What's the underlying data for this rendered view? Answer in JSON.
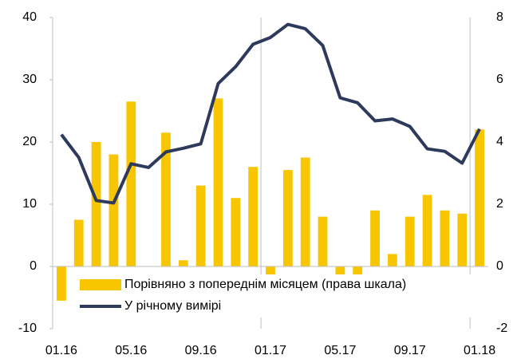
{
  "chart_data": {
    "type": "bar_line",
    "categories": [
      "01.16",
      null,
      null,
      null,
      "05.16",
      null,
      null,
      null,
      "09.16",
      null,
      null,
      null,
      "01.17",
      null,
      null,
      null,
      "05.17",
      null,
      null,
      null,
      "09.17",
      null,
      null,
      null,
      "01.18"
    ],
    "series": [
      {
        "name": "Порівняно з попереднім місяцем (права шкала)",
        "type": "bar",
        "axis": "y2",
        "color": "#f7c600",
        "values": [
          -1.1,
          1.5,
          4.0,
          3.6,
          5.3,
          0,
          4.3,
          0.2,
          2.6,
          5.4,
          2.2,
          3.2,
          -0.3,
          3.1,
          3.5,
          1.6,
          -1.3,
          -0.5,
          1.8,
          0.4,
          1.6,
          2.3,
          1.8,
          1.7,
          4.4
        ]
      },
      {
        "name": "У річному вимірі",
        "type": "line",
        "axis": "y",
        "color": "#2e3a5c",
        "values": [
          21.2,
          17.5,
          10.6,
          10.2,
          16.5,
          15.9,
          18.4,
          19.0,
          19.7,
          29.4,
          32.1,
          35.7,
          36.8,
          38.9,
          38.2,
          35.5,
          27.1,
          26.3,
          23.4,
          23.7,
          22.5,
          18.9,
          18.5,
          16.6,
          22.1
        ]
      }
    ],
    "ylim": [
      -10,
      40
    ],
    "yticks": [
      -10,
      0,
      10,
      20,
      30,
      40
    ],
    "y2lim": [
      -2,
      8
    ],
    "y2ticks": [
      -2,
      0,
      2,
      4,
      6,
      8
    ],
    "legend": "lower center"
  }
}
